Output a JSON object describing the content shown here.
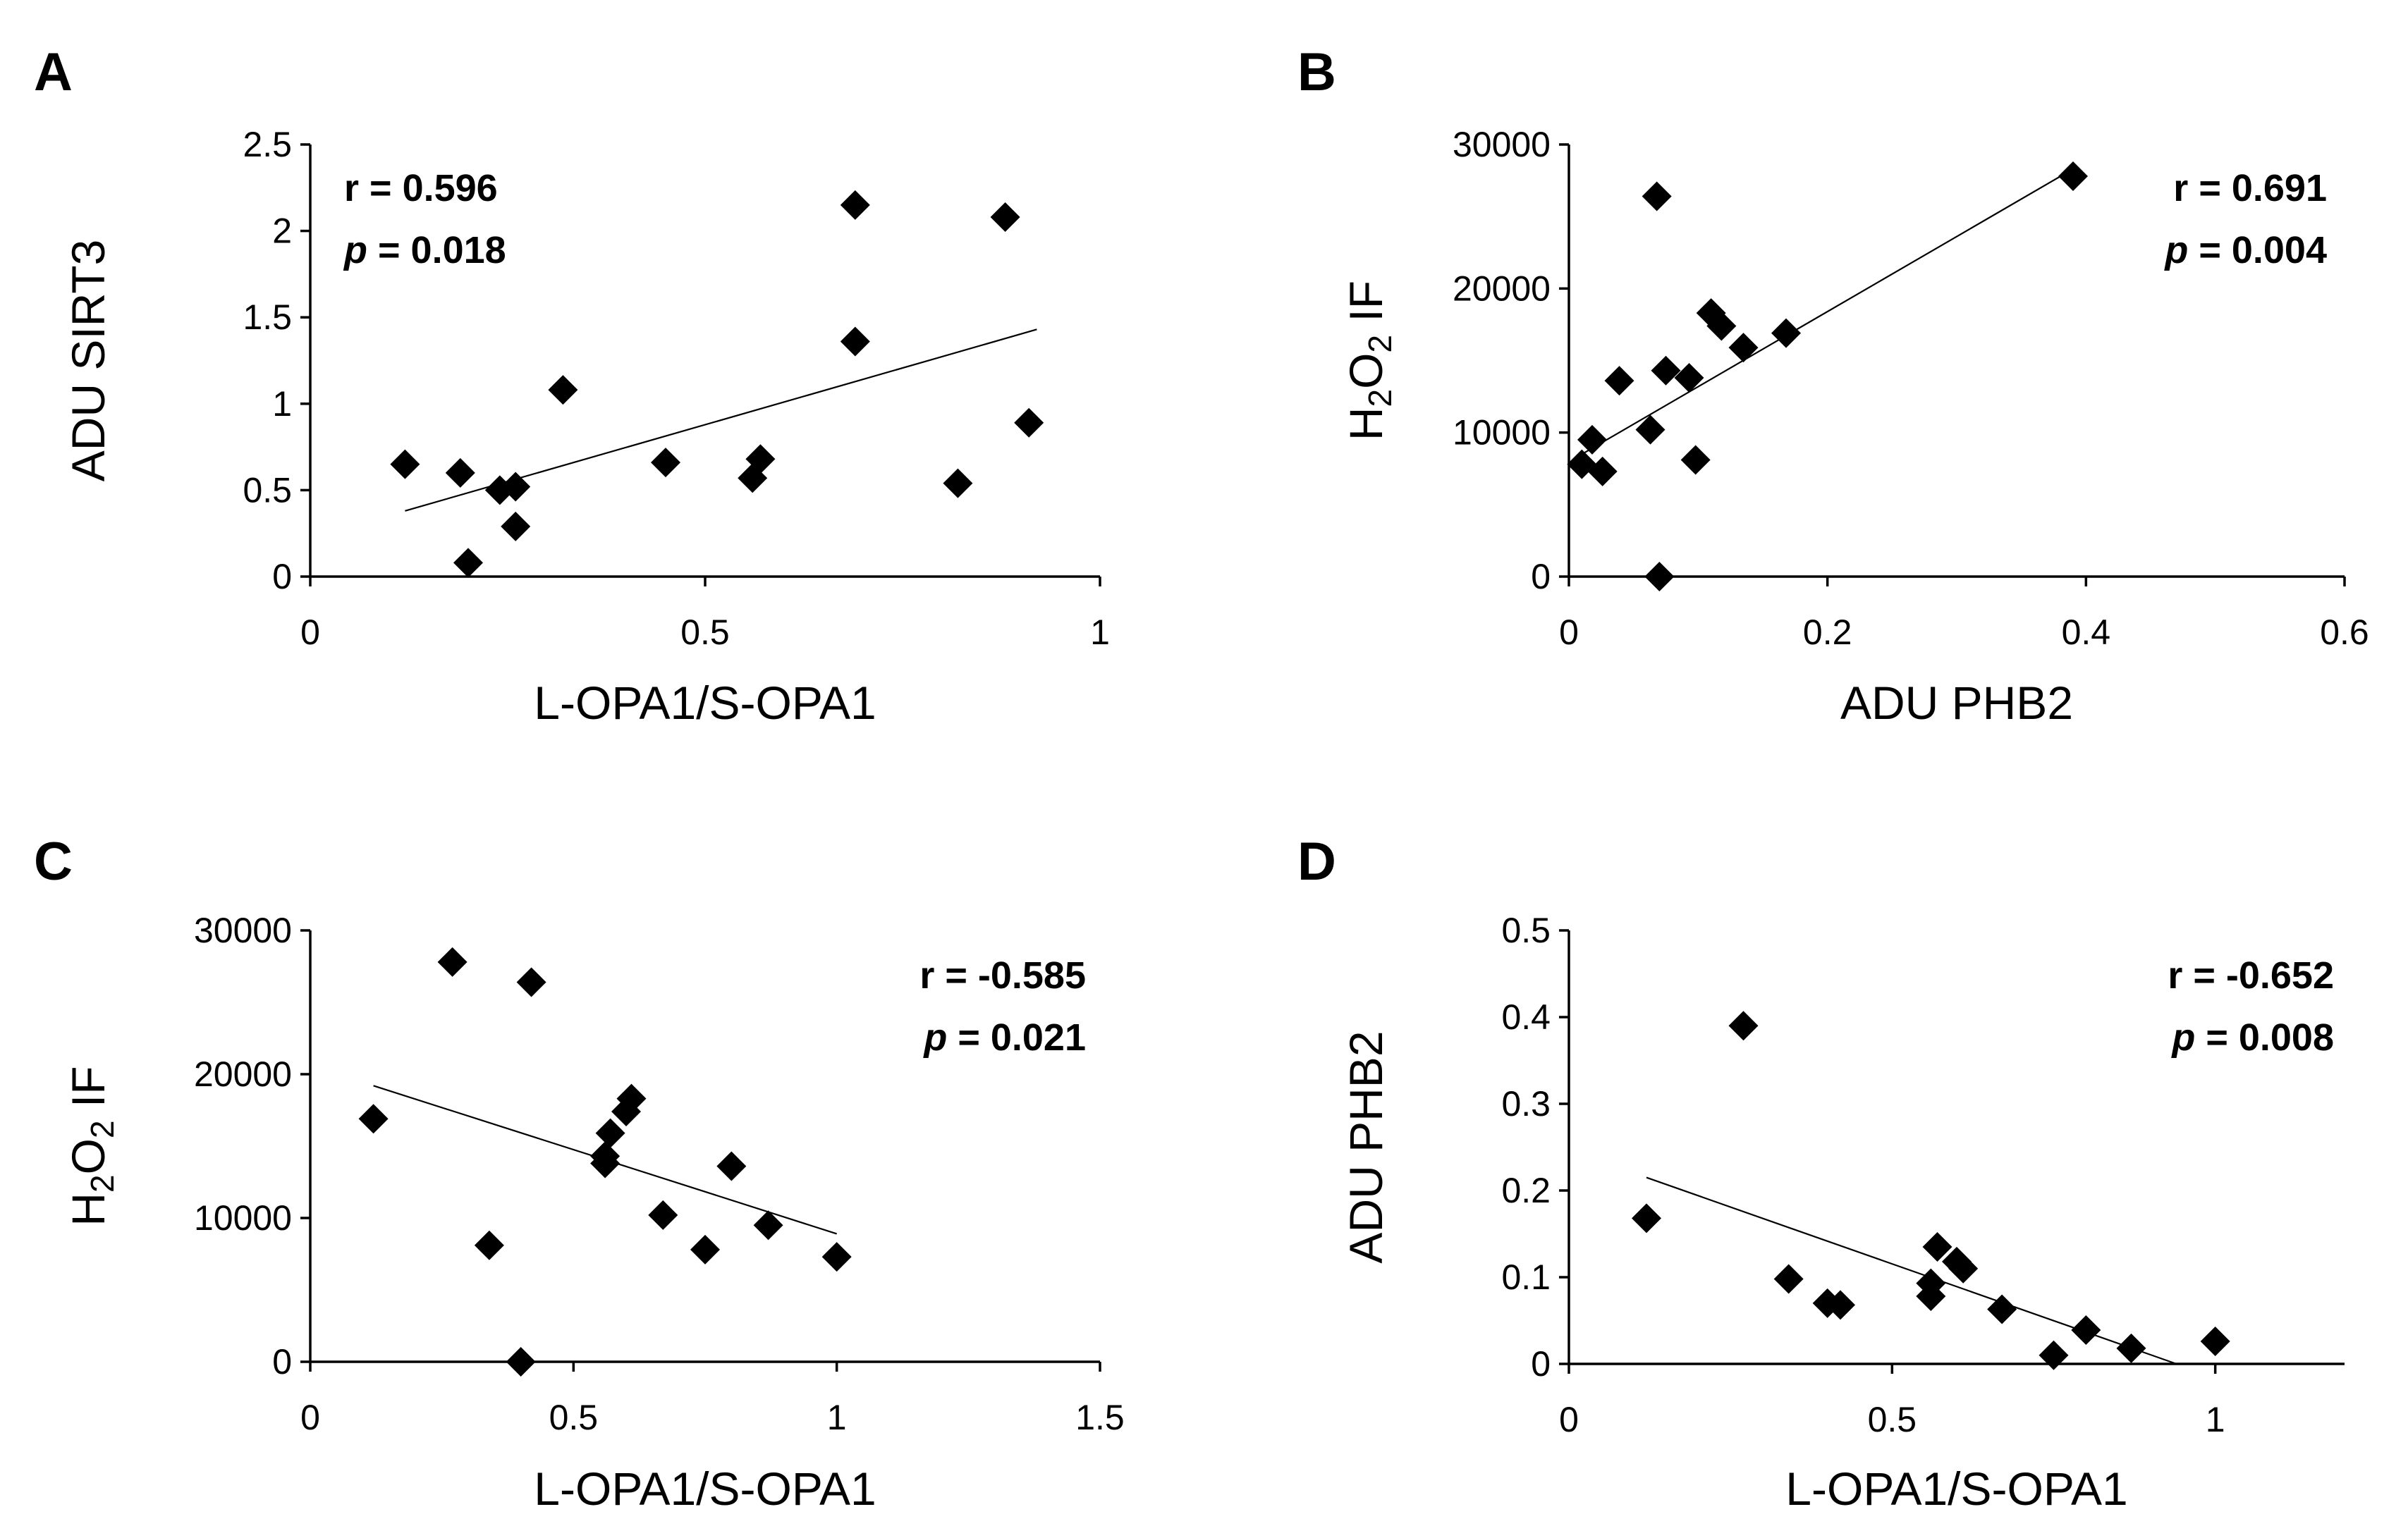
{
  "chart_data": [
    {
      "type": "scatter",
      "panel": "A",
      "xlabel": "L-OPA1/S-OPA1",
      "ylabel": "ADU SIRT3",
      "xlim": [
        0,
        1
      ],
      "ylim": [
        0,
        2.5
      ],
      "xticks": [
        0,
        0.5,
        1
      ],
      "xtick_labels": [
        "0",
        "0.5",
        "1"
      ],
      "yticks": [
        0,
        0.5,
        1,
        1.5,
        2,
        2.5
      ],
      "ytick_labels": [
        "0",
        "0.5",
        "1",
        "1.5",
        "2",
        "2.5"
      ],
      "stat_corner": "top-left",
      "r_text": "0.596",
      "p_text": "0.018",
      "trend_line": {
        "x": [
          0.12,
          0.92
        ],
        "y": [
          0.38,
          1.43
        ]
      },
      "points": [
        {
          "x": 0.12,
          "y": 0.65
        },
        {
          "x": 0.19,
          "y": 0.6
        },
        {
          "x": 0.2,
          "y": 0.08
        },
        {
          "x": 0.24,
          "y": 0.5
        },
        {
          "x": 0.26,
          "y": 0.52
        },
        {
          "x": 0.26,
          "y": 0.29
        },
        {
          "x": 0.32,
          "y": 1.08
        },
        {
          "x": 0.45,
          "y": 0.66
        },
        {
          "x": 0.56,
          "y": 0.57
        },
        {
          "x": 0.57,
          "y": 0.68
        },
        {
          "x": 0.69,
          "y": 1.36
        },
        {
          "x": 0.69,
          "y": 2.15
        },
        {
          "x": 0.82,
          "y": 0.54
        },
        {
          "x": 0.88,
          "y": 2.08
        },
        {
          "x": 0.91,
          "y": 0.89
        }
      ]
    },
    {
      "type": "scatter",
      "panel": "B",
      "xlabel": "ADU PHB2",
      "ylabel_parts": [
        "H",
        "2",
        "O",
        "2",
        " IF"
      ],
      "xlim": [
        0,
        0.6
      ],
      "ylim": [
        0,
        30000
      ],
      "xticks": [
        0,
        0.2,
        0.4,
        0.6
      ],
      "xtick_labels": [
        "0",
        "0.2",
        "0.4",
        "0.6"
      ],
      "yticks": [
        0,
        10000,
        20000,
        30000
      ],
      "ytick_labels": [
        "0",
        "10000",
        "20000",
        "30000"
      ],
      "stat_corner": "top-right",
      "r_text": "0.691",
      "p_text": "0.004",
      "trend_line": {
        "x": [
          0.012,
          0.39
        ],
        "y": [
          8600,
          28300
        ]
      },
      "points": [
        {
          "x": 0.01,
          "y": 7800
        },
        {
          "x": 0.018,
          "y": 9500
        },
        {
          "x": 0.026,
          "y": 7300
        },
        {
          "x": 0.039,
          "y": 13600
        },
        {
          "x": 0.063,
          "y": 10200
        },
        {
          "x": 0.068,
          "y": 26400
        },
        {
          "x": 0.07,
          "y": 0
        },
        {
          "x": 0.075,
          "y": 14300
        },
        {
          "x": 0.093,
          "y": 13800
        },
        {
          "x": 0.098,
          "y": 8100
        },
        {
          "x": 0.11,
          "y": 18300
        },
        {
          "x": 0.118,
          "y": 17400
        },
        {
          "x": 0.135,
          "y": 15900
        },
        {
          "x": 0.168,
          "y": 16900
        },
        {
          "x": 0.39,
          "y": 27800
        }
      ]
    },
    {
      "type": "scatter",
      "panel": "C",
      "xlabel": "L-OPA1/S-OPA1",
      "ylabel_parts": [
        "H",
        "2",
        "O",
        "2",
        " IF"
      ],
      "xlim": [
        0,
        1.5
      ],
      "ylim": [
        0,
        30000
      ],
      "xticks": [
        0,
        0.5,
        1,
        1.5
      ],
      "xtick_labels": [
        "0",
        "0.5",
        "1",
        "1.5"
      ],
      "yticks": [
        0,
        10000,
        20000,
        30000
      ],
      "ytick_labels": [
        "0",
        "10000",
        "20000",
        "30000"
      ],
      "stat_corner": "top-right",
      "r_text": "-0.585",
      "p_text": "0.021",
      "trend_line": {
        "x": [
          0.12,
          1.0
        ],
        "y": [
          19200,
          8900
        ]
      },
      "points": [
        {
          "x": 0.12,
          "y": 16900
        },
        {
          "x": 0.27,
          "y": 27800
        },
        {
          "x": 0.34,
          "y": 8100
        },
        {
          "x": 0.4,
          "y": 0
        },
        {
          "x": 0.42,
          "y": 26400
        },
        {
          "x": 0.56,
          "y": 13800
        },
        {
          "x": 0.56,
          "y": 14300
        },
        {
          "x": 0.57,
          "y": 15900
        },
        {
          "x": 0.6,
          "y": 17400
        },
        {
          "x": 0.61,
          "y": 18300
        },
        {
          "x": 0.67,
          "y": 10200
        },
        {
          "x": 0.75,
          "y": 7800
        },
        {
          "x": 0.8,
          "y": 13600
        },
        {
          "x": 0.87,
          "y": 9500
        },
        {
          "x": 1.0,
          "y": 7300
        }
      ]
    },
    {
      "type": "scatter",
      "panel": "D",
      "xlabel": "L-OPA1/S-OPA1",
      "ylabel": "ADU PHB2",
      "xlim": [
        0,
        1.2
      ],
      "ylim": [
        0,
        0.5
      ],
      "xticks": [
        0,
        0.5,
        1
      ],
      "xtick_labels": [
        "0",
        "0.5",
        "1"
      ],
      "yticks": [
        0,
        0.1,
        0.2,
        0.3,
        0.4,
        0.5
      ],
      "ytick_labels": [
        "0",
        "0.1",
        "0.2",
        "0.3",
        "0.4",
        "0.5"
      ],
      "stat_corner": "top-right",
      "r_text": "-0.652",
      "p_text": "0.008",
      "trend_line": {
        "x": [
          0.12,
          0.94
        ],
        "y": [
          0.215,
          0.0
        ]
      },
      "points": [
        {
          "x": 0.12,
          "y": 0.168
        },
        {
          "x": 0.27,
          "y": 0.39
        },
        {
          "x": 0.34,
          "y": 0.098
        },
        {
          "x": 0.4,
          "y": 0.07
        },
        {
          "x": 0.42,
          "y": 0.068
        },
        {
          "x": 0.56,
          "y": 0.093
        },
        {
          "x": 0.56,
          "y": 0.078
        },
        {
          "x": 0.57,
          "y": 0.135
        },
        {
          "x": 0.6,
          "y": 0.118
        },
        {
          "x": 0.61,
          "y": 0.11
        },
        {
          "x": 0.67,
          "y": 0.063
        },
        {
          "x": 0.75,
          "y": 0.01
        },
        {
          "x": 0.8,
          "y": 0.039
        },
        {
          "x": 0.87,
          "y": 0.018
        },
        {
          "x": 1.0,
          "y": 0.026
        }
      ]
    }
  ],
  "stat_labels": {
    "r_label": "r = ",
    "p_label": "p",
    "p_eq": " = "
  }
}
